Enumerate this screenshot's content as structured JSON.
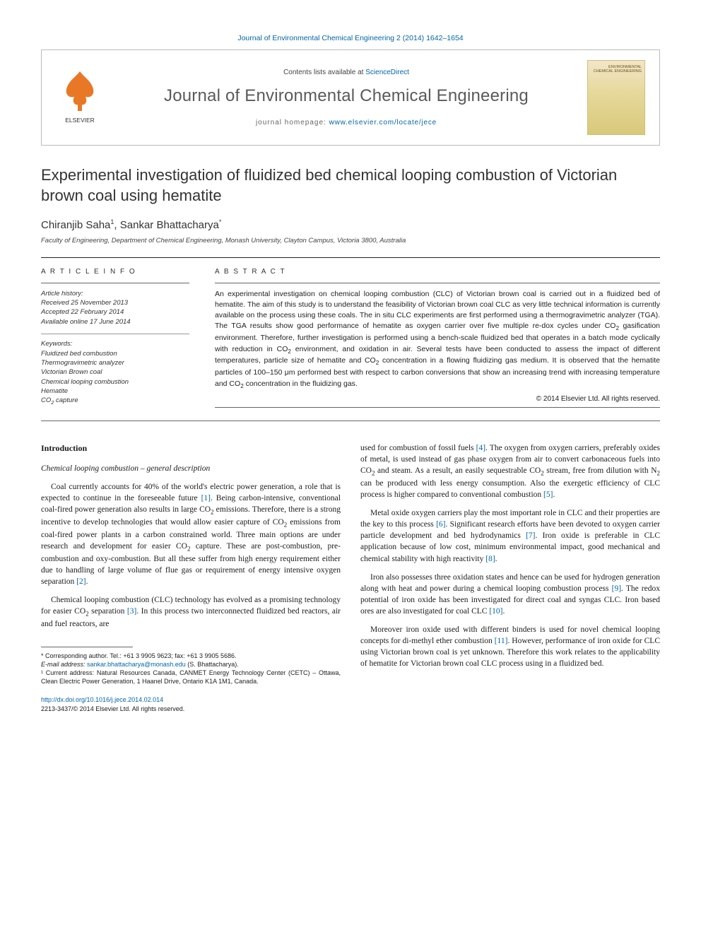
{
  "colors": {
    "link": "#0066aa",
    "elsevier_orange": "#e97826",
    "text": "#1a1a1a",
    "rule": "#222222",
    "journal_grey": "#5a5a5a",
    "cover_bg_top": "#f2e6c8",
    "cover_bg_bot": "#d8c97a"
  },
  "typography": {
    "base_family": "Georgia, serif",
    "sans_family": "Helvetica Neue, Arial, sans-serif",
    "title_fontsize_pt": 16,
    "body_fontsize_pt": 9,
    "abstract_fontsize_pt": 8
  },
  "top_citation": "Journal of Environmental Chemical Engineering 2 (2014) 1642–1654",
  "header": {
    "contents_prefix": "Contents lists available at ",
    "contents_link": "ScienceDirect",
    "journal_name": "Journal of Environmental Chemical Engineering",
    "homepage_prefix": "journal homepage: ",
    "homepage_url": "www.elsevier.com/locate/jece",
    "publisher_label": "ELSEVIER",
    "cover_text": "ENVIRONMENTAL\nCHEMICAL\nENGINEERING"
  },
  "article": {
    "title": "Experimental investigation of fluidized bed chemical looping combustion of Victorian brown coal using hematite",
    "authors_html": "Chiranjib Saha<sup>1</sup>, Sankar Bhattacharya<sup>*</sup>",
    "affiliation": "Faculty of Engineering, Department of Chemical Engineering, Monash University, Clayton Campus, Victoria 3800, Australia"
  },
  "article_info": {
    "heading": "A R T I C L E  I N F O",
    "history_label": "Article history:",
    "history_lines": [
      "Received 25 November 2013",
      "Accepted 22 February 2014",
      "Available online 17 June 2014"
    ],
    "keywords_label": "Keywords:",
    "keywords": [
      "Fluidized bed combustion",
      "Thermogravimetric analyzer",
      "Victorian Brown coal",
      "Chemical looping combustion",
      "Hematite",
      "CO₂ capture"
    ]
  },
  "abstract": {
    "heading": "A B S T R A C T",
    "text": "An experimental investigation on chemical looping combustion (CLC) of Victorian brown coal is carried out in a fluidized bed of hematite. The aim of this study is to understand the feasibility of Victorian brown coal CLC as very little technical information is currently available on the process using these coals. The in situ CLC experiments are first performed using a thermogravimetric analyzer (TGA). The TGA results show good performance of hematite as oxygen carrier over five multiple re-dox cycles under CO₂ gasification environment. Therefore, further investigation is performed using a bench-scale fluidized bed that operates in a batch mode cyclically with reduction in CO₂ environment, and oxidation in air. Several tests have been conducted to assess the impact of different temperatures, particle size of hematite and CO₂ concentration in a flowing fluidizing gas medium. It is observed that the hematite particles of 100–150 μm performed best with respect to carbon conversions that show an increasing trend with increasing temperature and CO₂ concentration in the fluidizing gas.",
    "copyright": "© 2014 Elsevier Ltd. All rights reserved."
  },
  "body": {
    "h_intro": "Introduction",
    "h_sub": "Chemical looping combustion – general description",
    "p1": "Coal currently accounts for 40% of the world's electric power generation, a role that is expected to continue in the foreseeable future [1]. Being carbon-intensive, conventional coal-fired power generation also results in large CO₂ emissions. Therefore, there is a strong incentive to develop technologies that would allow easier capture of CO₂ emissions from coal-fired power plants in a carbon constrained world. Three main options are under research and development for easier CO₂ capture. These are post-combustion, pre-combustion and oxy-combustion. But all these suffer from high energy requirement either due to handling of large volume of flue gas or requirement of energy intensive oxygen separation [2].",
    "p2": "Chemical looping combustion (CLC) technology has evolved as a promising technology for easier CO₂ separation [3]. In this process two interconnected fluidized bed reactors, air and fuel reactors, are",
    "p3": "used for combustion of fossil fuels [4]. The oxygen from oxygen carriers, preferably oxides of metal, is used instead of gas phase oxygen from air to convert carbonaceous fuels into CO₂ and steam. As a result, an easily sequestrable CO₂ stream, free from dilution with N₂ can be produced with less energy consumption. Also the exergetic efficiency of CLC process is higher compared to conventional combustion [5].",
    "p4": "Metal oxide oxygen carriers play the most important role in CLC and their properties are the key to this process [6]. Significant research efforts have been devoted to oxygen carrier particle development and bed hydrodynamics [7]. Iron oxide is preferable in CLC application because of low cost, minimum environmental impact, good mechanical and chemical stability with high reactivity [8].",
    "p5": "Iron also possesses three oxidation states and hence can be used for hydrogen generation along with heat and power during a chemical looping combustion process [9]. The redox potential of iron oxide has been investigated for direct coal and syngas CLC. Iron based ores are also investigated for coal CLC [10].",
    "p6": "Moreover iron oxide used with different binders is used for novel chemical looping concepts for di-methyl ether combustion [11]. However, performance of iron oxide for CLC using Victorian brown coal is yet unknown. Therefore this work relates to the applicability of hematite for Victorian brown coal CLC process using in a fluidized bed."
  },
  "footnotes": {
    "corr": "* Corresponding author. Tel.: +61 3 9905 9623; fax: +61 3 9905 5686.",
    "email_label": "E-mail address: ",
    "email": "sankar.bhattacharya@monash.edu",
    "email_who": " (S. Bhattacharya).",
    "addr": "¹ Current address: Natural Resources Canada, CANMET Energy Technology Center (CETC) – Ottawa, Clean Electric Power Generation, 1 Haanel Drive, Ontario K1A 1M1, Canada."
  },
  "doi": {
    "url": "http://dx.doi.org/10.1016/j.jece.2014.02.014",
    "issn_line": "2213-3437/© 2014 Elsevier Ltd. All rights reserved."
  }
}
